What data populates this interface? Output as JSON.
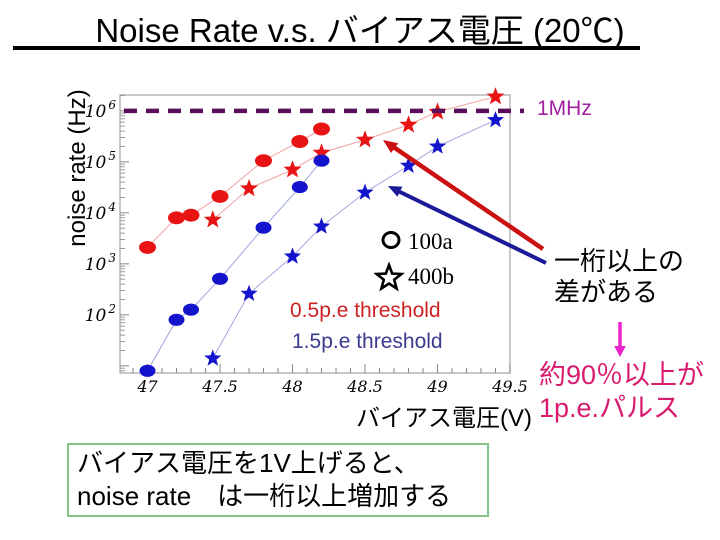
{
  "slide": {
    "title": "Noise Rate v.s. バイアス電圧 (20℃)"
  },
  "chart_data": {
    "type": "scatter",
    "xlabel": "バイアス電圧(V)",
    "ylabel": "noise rate (Hz)",
    "x_range": [
      46.81,
      49.5
    ],
    "y_range_exp": [
      0.86,
      6.31
    ],
    "x_ticks": [
      47,
      47.5,
      48,
      48.5,
      49,
      49.5
    ],
    "x_minor_step": 0.1,
    "y_tick_exponents": [
      1,
      2,
      3,
      4,
      5,
      6
    ],
    "y_labeled_exponents": [
      2,
      3,
      4,
      5,
      6
    ],
    "grid": false,
    "legend_position": "inside-right",
    "reference_line": {
      "value": 1000000,
      "label": "1MHz"
    },
    "series": [
      {
        "name": "100a 0.5p.e threshold",
        "marker": "circle",
        "size": 8.5,
        "color": "#e81414",
        "line_color": "#f0a8a8",
        "points": [
          [
            47.0,
            2100
          ],
          [
            47.2,
            8000
          ],
          [
            47.3,
            9000
          ],
          [
            47.5,
            21000
          ],
          [
            47.8,
            105000
          ],
          [
            48.05,
            250000
          ],
          [
            48.2,
            440000
          ]
        ]
      },
      {
        "name": "400b 0.5p.e threshold",
        "marker": "star",
        "size": 9.5,
        "color": "#e81414",
        "line_color": "#f0a8a8",
        "points": [
          [
            47.45,
            7300
          ],
          [
            47.7,
            30000
          ],
          [
            48.0,
            70000
          ],
          [
            48.2,
            150000
          ],
          [
            48.5,
            270000
          ],
          [
            48.8,
            530000
          ],
          [
            49.0,
            950000
          ],
          [
            49.4,
            1900000
          ]
        ]
      },
      {
        "name": "100a 1.5p.e threshold",
        "marker": "circle",
        "size": 8,
        "color": "#1414cc",
        "line_color": "#a8aede",
        "points": [
          [
            47.0,
            8
          ],
          [
            47.2,
            80
          ],
          [
            47.3,
            126
          ],
          [
            47.5,
            510
          ],
          [
            47.8,
            5100
          ],
          [
            48.05,
            32000
          ],
          [
            48.2,
            105000
          ]
        ]
      },
      {
        "name": "400b 1.5p.e threshold",
        "marker": "star",
        "size": 9,
        "color": "#1414cc",
        "line_color": "#a8aede",
        "points": [
          [
            47.45,
            14
          ],
          [
            47.7,
            260
          ],
          [
            48.0,
            1400
          ],
          [
            48.2,
            5400
          ],
          [
            48.5,
            25000
          ],
          [
            48.8,
            84000
          ],
          [
            49.0,
            200000
          ],
          [
            49.4,
            660000
          ]
        ]
      }
    ]
  },
  "legend": {
    "circle_label": "100a",
    "star_label": "400b",
    "red_label": "0.5p.e threshold",
    "blue_label": "1.5p.e threshold"
  },
  "annotations": {
    "ref_label": "1MHz",
    "gap_line1": "一桁以上の",
    "gap_line2": "差がある",
    "pulse_line1": "約90％以上が",
    "pulse_line2": "1p.e.パルス"
  },
  "footer": {
    "line1": "バイアス電圧を1V上げると、",
    "line2": "noise rate　は一桁以上増加する"
  },
  "colors": {
    "red_series": "#e81414",
    "blue_series": "#1414cc",
    "red_series_line": "#f0a8a8",
    "blue_series_line": "#a8aede",
    "reference_line": "#5a0d5a",
    "reference_label": "#a020a0",
    "red_legend_text": "#cc2222",
    "blue_legend_text": "#3b3b8e",
    "pink_text": "#d91b70",
    "magenta_arrow": "#ee22cc",
    "red_arrow": "#cc1111",
    "blue_arrow": "#1a1a99",
    "footer_border": "#86c386",
    "plot_frame": "#b0b0b0"
  }
}
